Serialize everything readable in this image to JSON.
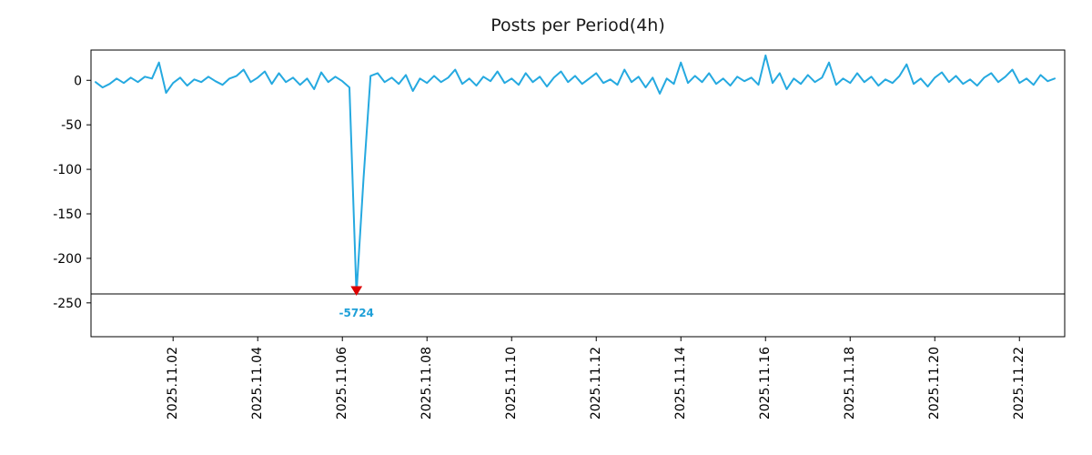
{
  "chart_data": {
    "type": "line",
    "title": "Posts per Period(4h)",
    "xlabel": "",
    "ylabel": "",
    "line_color": "#25a9e0",
    "xlim": [
      -0.94,
      22.07
    ],
    "ylim": [
      -288,
      34
    ],
    "grid": false,
    "legend": "none",
    "clip_min": -240,
    "yticks": [
      {
        "v": 0,
        "label": "0"
      },
      {
        "v": -50,
        "label": "-50"
      },
      {
        "v": -100,
        "label": "-100"
      },
      {
        "v": -150,
        "label": "-150"
      },
      {
        "v": -200,
        "label": "-200"
      },
      {
        "v": -250,
        "label": "-250"
      }
    ],
    "xticks": [
      {
        "day": 1,
        "label": "2025.11.02"
      },
      {
        "day": 3,
        "label": "2025.11.04"
      },
      {
        "day": 5,
        "label": "2025.11.06"
      },
      {
        "day": 7,
        "label": "2025.11.08"
      },
      {
        "day": 9,
        "label": "2025.11.10"
      },
      {
        "day": 11,
        "label": "2025.11.12"
      },
      {
        "day": 13,
        "label": "2025.11.14"
      },
      {
        "day": 15,
        "label": "2025.11.16"
      },
      {
        "day": 17,
        "label": "2025.11.18"
      },
      {
        "day": 19,
        "label": "2025.11.20"
      },
      {
        "day": 21,
        "label": "2025.11.22"
      }
    ],
    "series": {
      "name": "posts-delta",
      "x_start_day": -0.8333,
      "x_step_day": 0.16667,
      "values": [
        -2,
        -8,
        -4,
        2,
        -3,
        3,
        -2,
        4,
        2,
        20,
        -14,
        -3,
        3,
        -6,
        1,
        -2,
        4,
        -1,
        -5,
        2,
        5,
        12,
        -2,
        3,
        10,
        -4,
        8,
        -2,
        3,
        -5,
        2,
        -10,
        9,
        -2,
        4,
        -1,
        -8,
        -5724,
        -110,
        5,
        8,
        -2,
        3,
        -4,
        6,
        -12,
        2,
        -3,
        5,
        -2,
        3,
        12,
        -4,
        2,
        -6,
        4,
        -1,
        10,
        -3,
        2,
        -5,
        8,
        -2,
        4,
        -7,
        3,
        10,
        -2,
        5,
        -4,
        2,
        8,
        -3,
        1,
        -5,
        12,
        -2,
        4,
        -8,
        3,
        -15,
        2,
        -4,
        20,
        -3,
        5,
        -2,
        8,
        -4,
        2,
        -6,
        4,
        -1,
        3,
        -5,
        28,
        -3,
        8,
        -10,
        2,
        -4,
        6,
        -2,
        3,
        20,
        -5,
        2,
        -3,
        8,
        -2,
        4,
        -6,
        1,
        -3,
        5,
        18,
        -4,
        2,
        -7,
        3,
        9,
        -2,
        5,
        -4,
        1,
        -6,
        3,
        8,
        -2,
        4,
        12,
        -3,
        2,
        -5,
        6,
        -1,
        2
      ]
    },
    "annotation": {
      "index": 37,
      "label": "-5724",
      "value": -5724,
      "text_color": "#1fa0d8",
      "marker": "triangle-down",
      "marker_color": "#dd0000"
    }
  }
}
